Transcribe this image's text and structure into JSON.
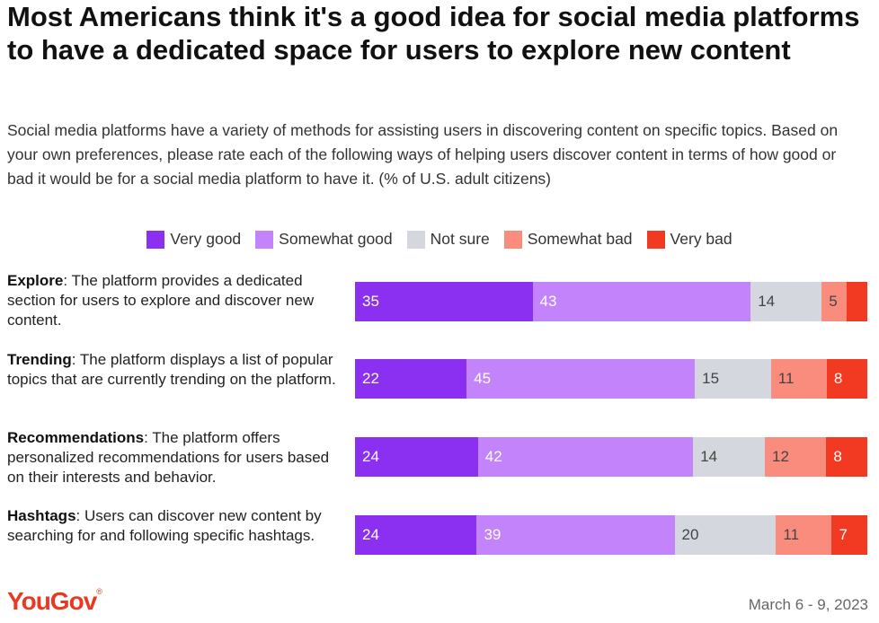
{
  "title": "Most Americans think it's a good idea for social media platforms to have a dedicated space for users to explore new content",
  "subtitle": "Social media platforms have a variety of methods for assisting users in discovering content on specific topics. Based on your own preferences, please rate each of the following ways of helping users discover content in terms of how good or bad it would be for a social media platform to have it. (% of U.S. adult citizens)",
  "footer": {
    "brand": "YouGov",
    "date": "March 6 - 9, 2023"
  },
  "colors": {
    "very_good": "#8b2ff0",
    "somewhat_good": "#c383fb",
    "not_sure": "#d4d7de",
    "somewhat_bad": "#f98c7d",
    "very_bad": "#f23a22"
  },
  "chart_data": {
    "type": "bar",
    "orientation": "horizontal",
    "stacked": true,
    "title": "Most Americans think it's a good idea for social media platforms to have a dedicated space for users to explore new content",
    "legend_position": "top",
    "categories": [
      {
        "name": "Explore",
        "description": ": The platform provides a dedicated section for users to explore and discover new content."
      },
      {
        "name": "Trending",
        "description": ": The platform displays a list of popular topics that are currently trending on the platform."
      },
      {
        "name": "Recommendations",
        "description": ": The platform offers personalized recommendations for users based on their interests and behavior."
      },
      {
        "name": "Hashtags",
        "description": ": Users can discover new content by searching for and following specific hashtags."
      }
    ],
    "series": [
      {
        "name": "Very good",
        "key": "very_good",
        "values": [
          35,
          22,
          24,
          24
        ]
      },
      {
        "name": "Somewhat good",
        "key": "somewhat_good",
        "values": [
          43,
          45,
          42,
          39
        ]
      },
      {
        "name": "Not sure",
        "key": "not_sure",
        "values": [
          14,
          15,
          14,
          20
        ]
      },
      {
        "name": "Somewhat bad",
        "key": "somewhat_bad",
        "values": [
          5,
          11,
          12,
          11
        ]
      },
      {
        "name": "Very bad",
        "key": "very_bad",
        "values": [
          4,
          8,
          8,
          7
        ]
      }
    ],
    "data_labels": [
      [
        "35",
        "43",
        "14",
        "5",
        ""
      ],
      [
        "22",
        "45",
        "15",
        "11",
        "8"
      ],
      [
        "24",
        "42",
        "14",
        "12",
        "8"
      ],
      [
        "24",
        "39",
        "20",
        "11",
        "7"
      ]
    ]
  }
}
